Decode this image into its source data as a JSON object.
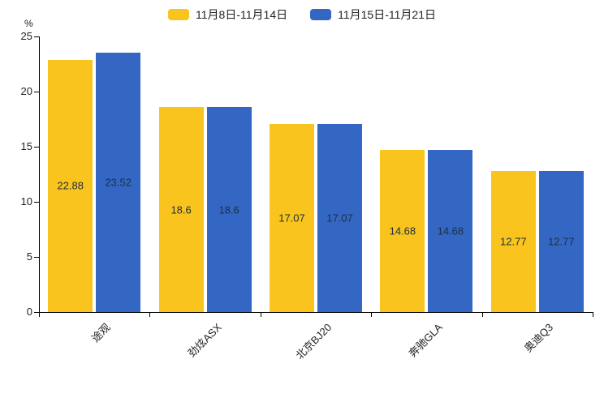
{
  "chart_data": {
    "type": "bar",
    "title": "",
    "categories": [
      "途观",
      "劲炫ASX",
      "北京BJ20",
      "奔驰GLA",
      "奥迪Q3"
    ],
    "series": [
      {
        "name": "11月8日-11月14日",
        "color": "#F8C41D",
        "values": [
          22.88,
          18.6,
          17.07,
          14.68,
          12.77
        ]
      },
      {
        "name": "11月15日-11月21日",
        "color": "#3466C4",
        "values": [
          23.52,
          18.6,
          17.07,
          14.68,
          12.77
        ]
      }
    ],
    "xlabel": "",
    "ylabel": "%",
    "ylim": [
      0,
      25
    ],
    "yticks": [
      0,
      5,
      10,
      15,
      20,
      25
    ],
    "grid": false,
    "legend_position": "top",
    "value_labels_shown": true,
    "value_label_color": "#1d3040",
    "axis_color": "#000000",
    "background_color": "#ffffff"
  }
}
